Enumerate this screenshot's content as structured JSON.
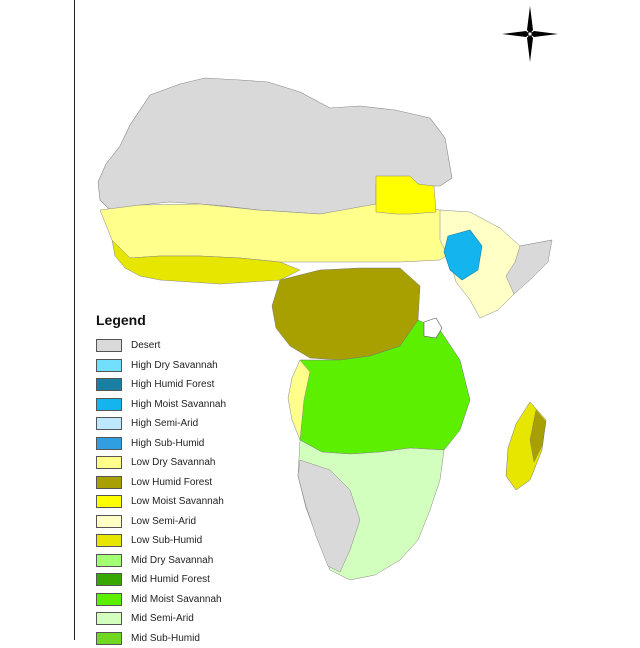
{
  "map": {
    "legend_title": "Legend",
    "north_arrow_icon": "north-arrow-icon",
    "legend_items": [
      {
        "label": "Desert",
        "color": "#d9d9d9"
      },
      {
        "label": "High Dry Savannah",
        "color": "#73dfff"
      },
      {
        "label": "High Humid Forest",
        "color": "#1b7fa3"
      },
      {
        "label": "High Moist Savannah",
        "color": "#14b4ee"
      },
      {
        "label": "High Semi-Arid",
        "color": "#bee8ff"
      },
      {
        "label": "High Sub-Humid",
        "color": "#2f9fe0"
      },
      {
        "label": "Low Dry Savannah",
        "color": "#ffff8c"
      },
      {
        "label": "Low Humid Forest",
        "color": "#a8a000"
      },
      {
        "label": "Low Moist Savannah",
        "color": "#ffff00"
      },
      {
        "label": "Low Semi-Arid",
        "color": "#ffffc6"
      },
      {
        "label": "Low Sub-Humid",
        "color": "#e6e600"
      },
      {
        "label": "Mid Dry Savannah",
        "color": "#a3ff73"
      },
      {
        "label": "Mid Humid Forest",
        "color": "#38a800"
      },
      {
        "label": "Mid Moist Savannah",
        "color": "#5cf000"
      },
      {
        "label": "Mid Semi-Arid",
        "color": "#d3ffbe"
      },
      {
        "label": "Mid Sub-Humid",
        "color": "#70d820"
      }
    ]
  }
}
